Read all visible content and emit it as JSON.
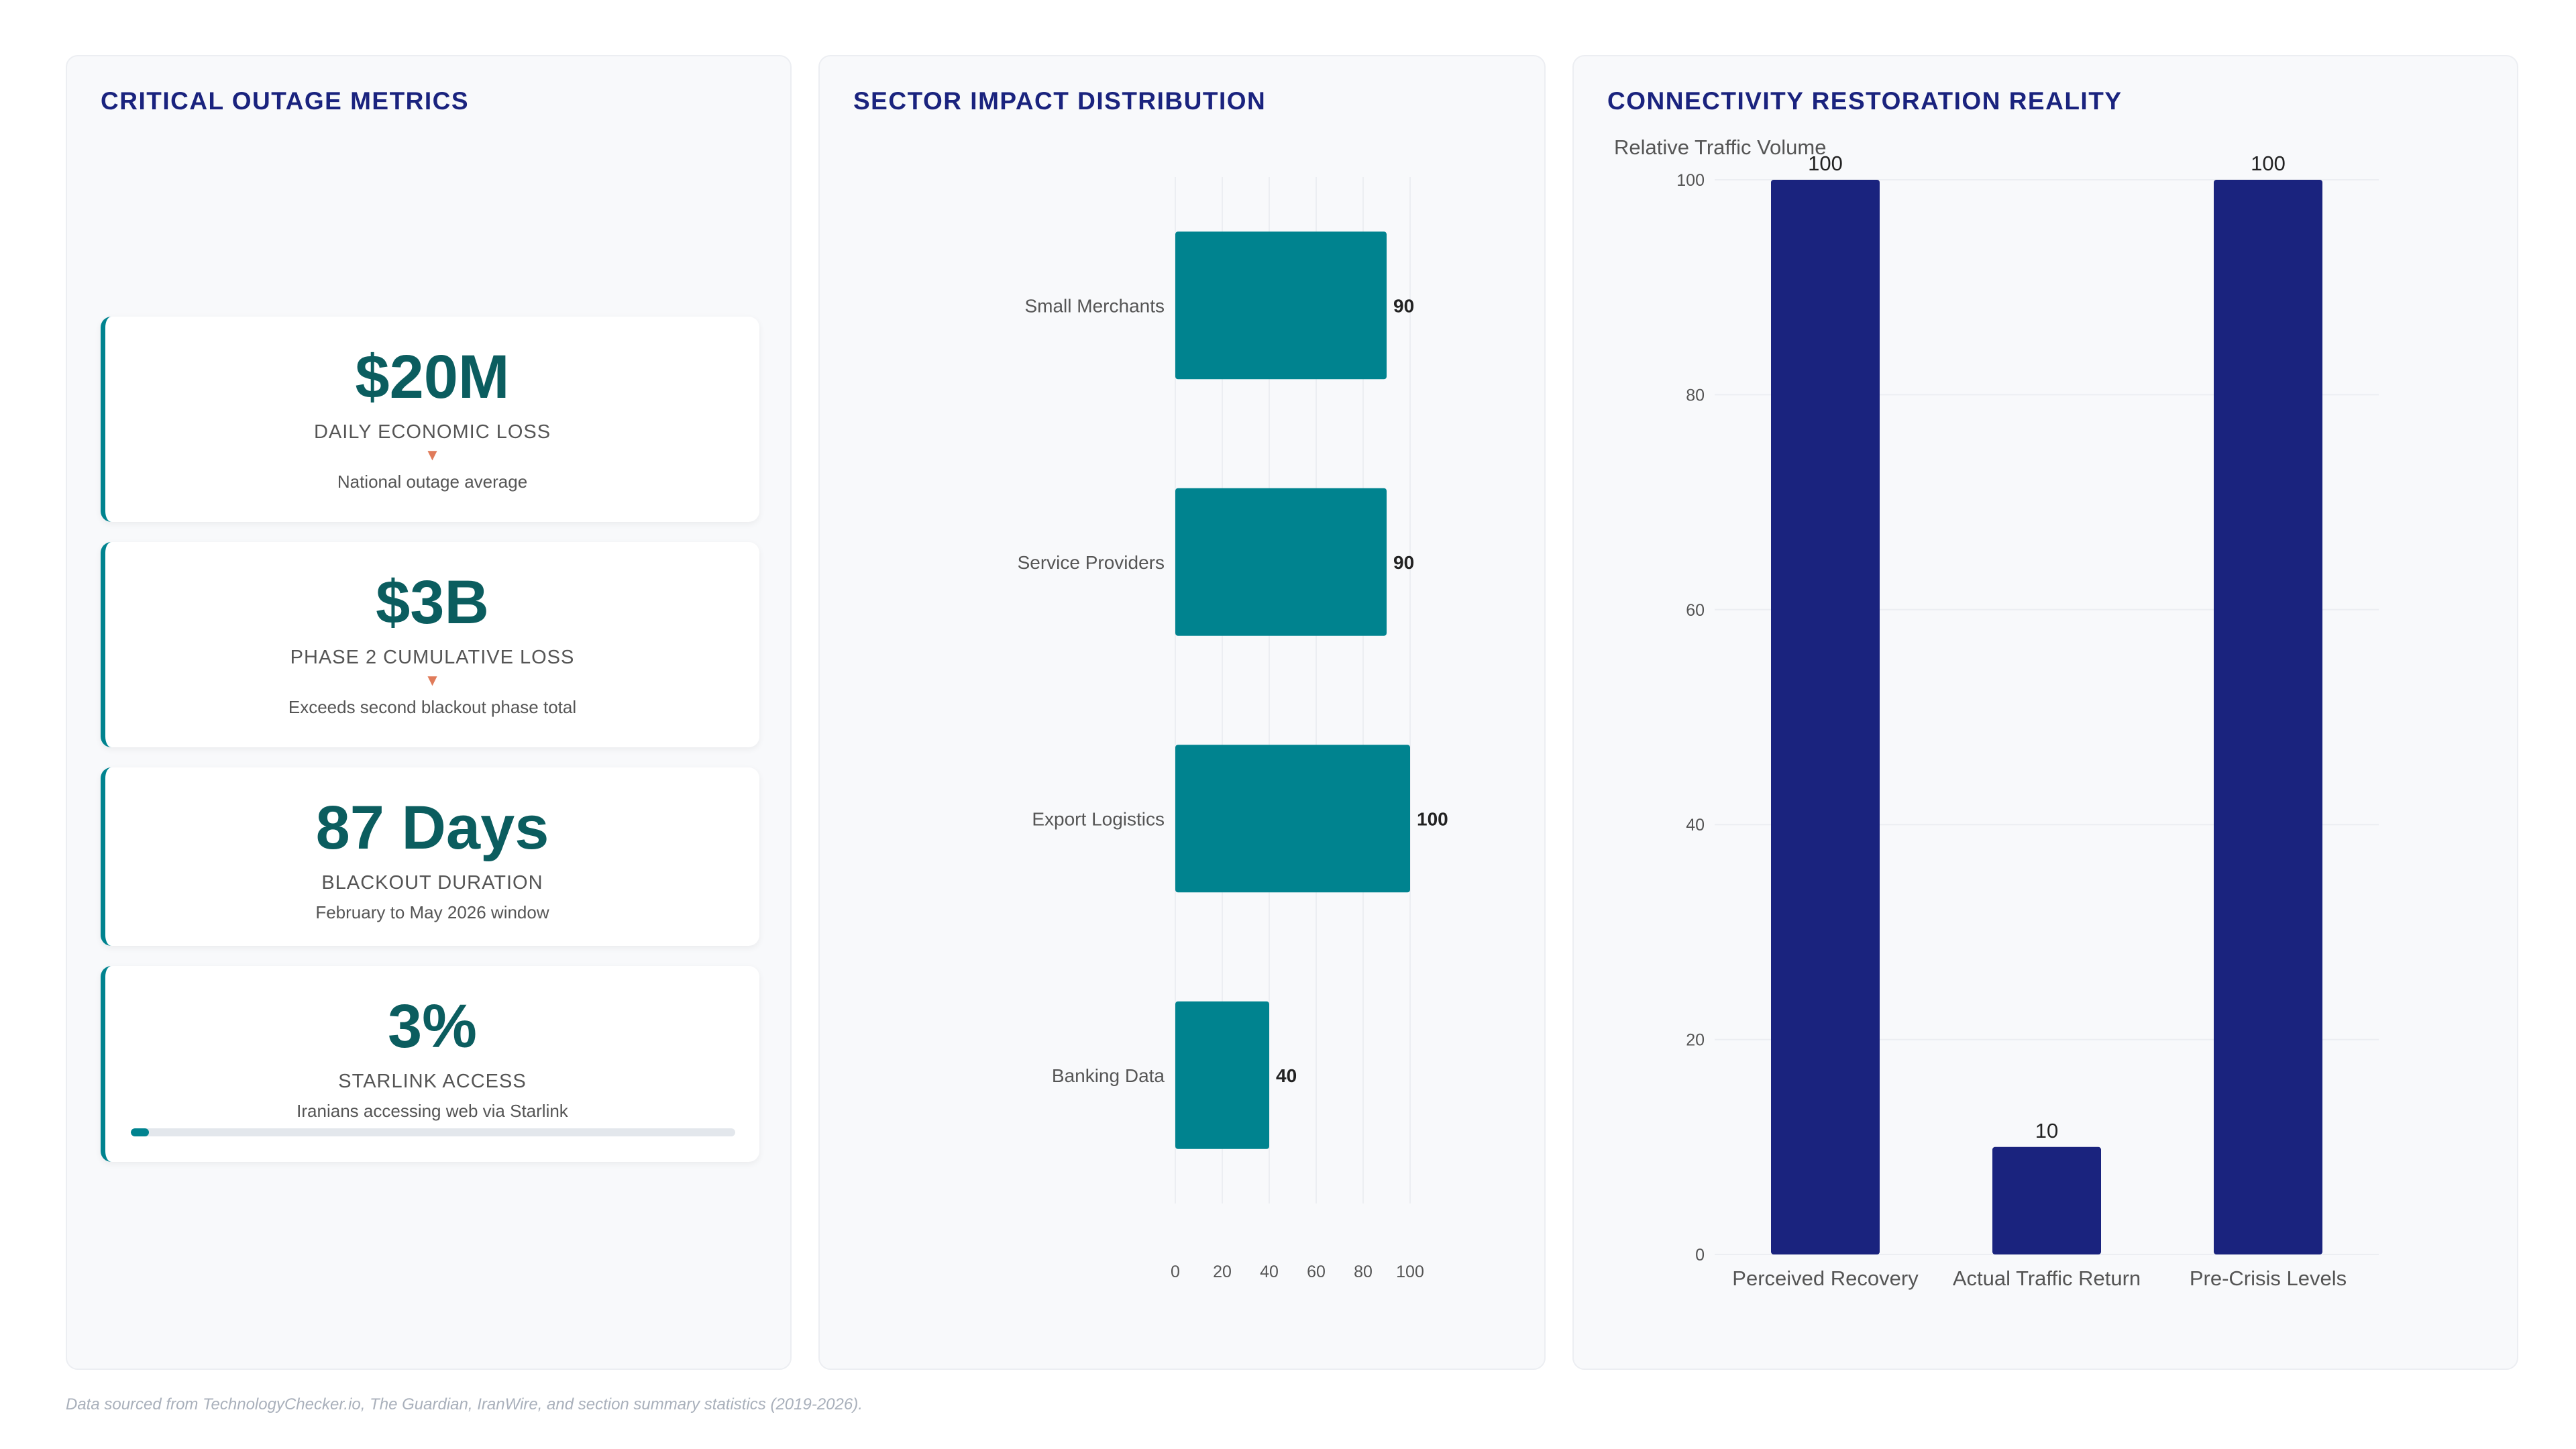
{
  "metrics_panel": {
    "title": "CRITICAL OUTAGE METRICS",
    "kpis": [
      {
        "value": "$20M",
        "label": "DAILY ECONOMIC LOSS",
        "trend": "down",
        "trend_glyph": "▼",
        "note": "National outage average"
      },
      {
        "value": "$3B",
        "label": "PHASE 2 CUMULATIVE LOSS",
        "trend": "down",
        "trend_glyph": "▼",
        "note": "Exceeds second blackout phase total"
      },
      {
        "value": "87 Days",
        "label": "BLACKOUT DURATION",
        "note": "February to May 2026 window"
      },
      {
        "value": "3%",
        "label": "STARLINK ACCESS",
        "note": "Iranians accessing web via Starlink",
        "progress_percent": 3
      }
    ]
  },
  "sector_panel": {
    "title": "SECTOR IMPACT DISTRIBUTION"
  },
  "connect_panel": {
    "title": "CONNECTIVITY RESTORATION REALITY"
  },
  "footer": "Data sourced from TechnologyChecker.io, The Guardian, IranWire, and section summary statistics (2019-2026).",
  "colors": {
    "accent_teal": "#00838f",
    "kpi_value": "#0b5d5f",
    "navy": "#1a237e",
    "trend_down": "#e07b5a"
  },
  "chart_data": [
    {
      "type": "bar",
      "orientation": "horizontal",
      "title": "SECTOR IMPACT DISTRIBUTION",
      "categories": [
        "Small Merchants",
        "Service Providers",
        "Export Logistics",
        "Banking Data"
      ],
      "values": [
        90,
        90,
        100,
        40
      ],
      "xlim": [
        0,
        100
      ],
      "xticks": [
        0,
        20,
        40,
        60,
        80,
        100
      ],
      "data_labels": true,
      "grid": "vertical",
      "legend": "none",
      "color": "#00838f"
    },
    {
      "type": "bar",
      "orientation": "vertical",
      "title": "CONNECTIVITY RESTORATION REALITY",
      "ylabel": "Relative Traffic Volume",
      "categories": [
        "Perceived Recovery",
        "Actual Traffic Return",
        "Pre-Crisis Levels"
      ],
      "values": [
        100,
        10,
        100
      ],
      "ylim": [
        0,
        100
      ],
      "yticks": [
        0,
        20,
        40,
        60,
        80,
        100
      ],
      "data_labels": true,
      "grid": "horizontal",
      "legend": "none",
      "color": "#1a237e"
    }
  ]
}
